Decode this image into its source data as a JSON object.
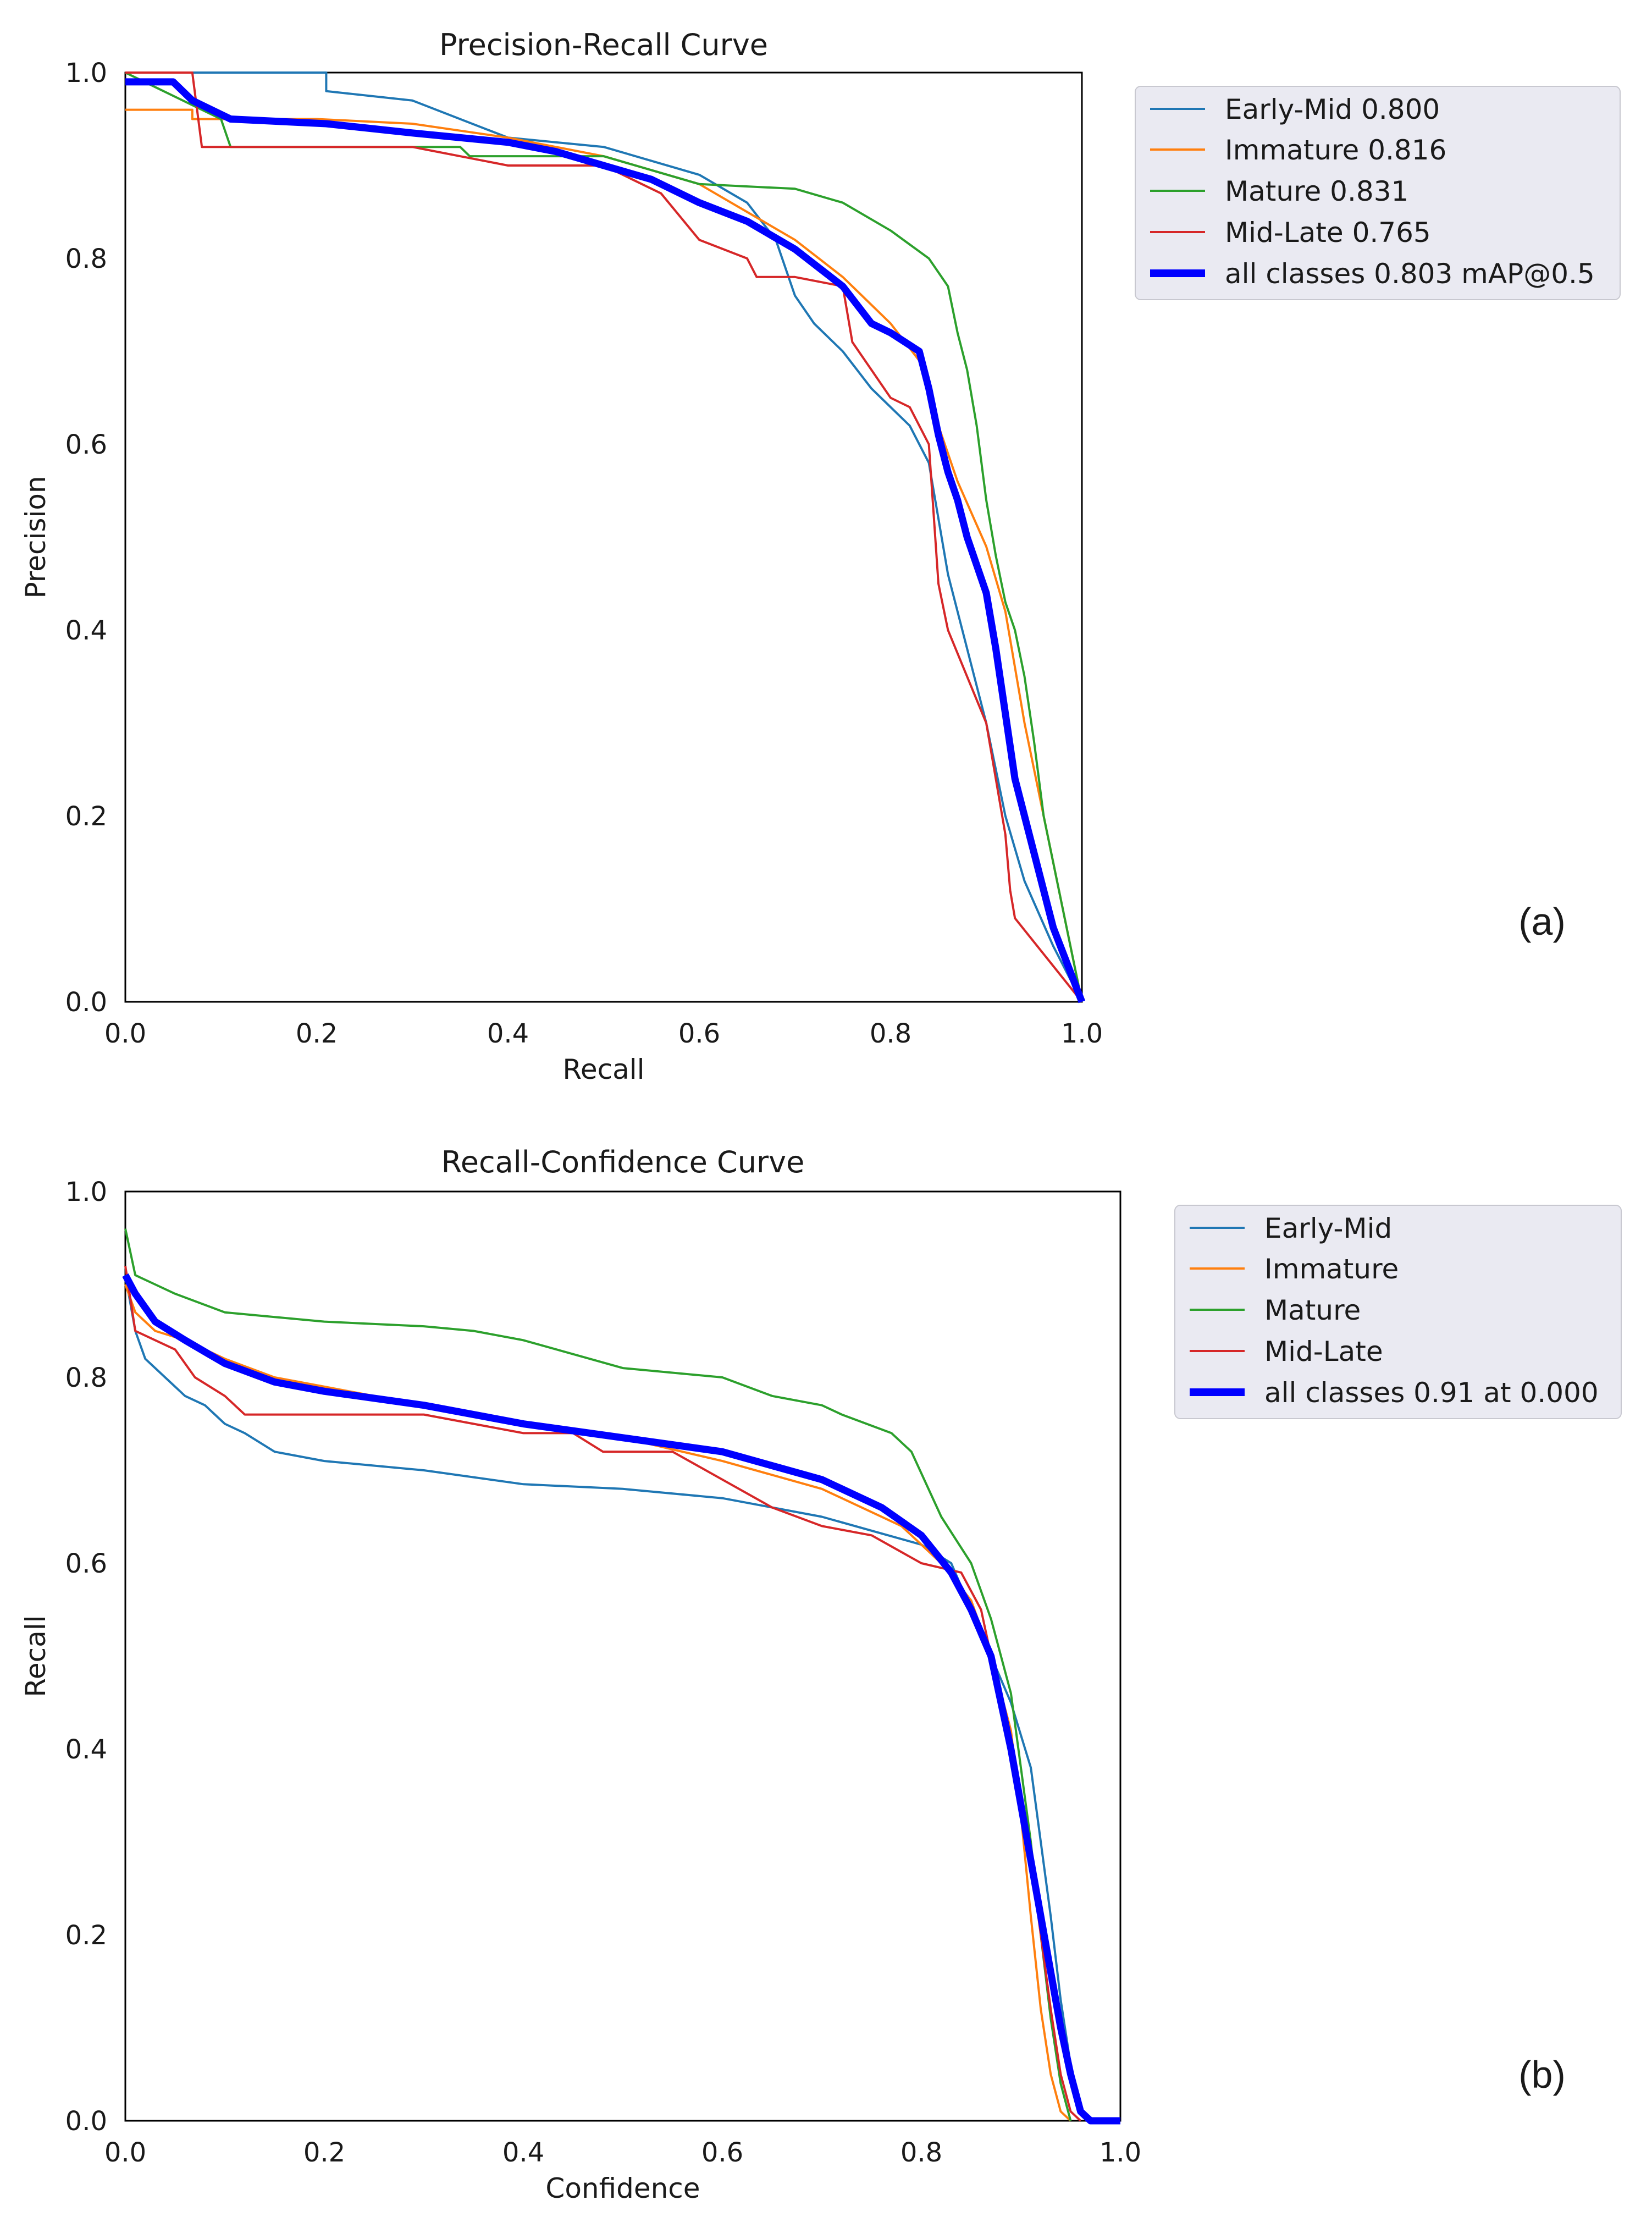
{
  "chart_data": [
    {
      "type": "line",
      "panel_label": "(a)",
      "title": "Precision-Recall Curve",
      "xlabel": "Recall",
      "ylabel": "Precision",
      "xlim": [
        0,
        1
      ],
      "ylim": [
        0,
        1
      ],
      "xticks": [
        "0.0",
        "0.2",
        "0.4",
        "0.6",
        "0.8",
        "1.0"
      ],
      "yticks": [
        "0.0",
        "0.2",
        "0.4",
        "0.6",
        "0.8",
        "1.0"
      ],
      "grid": false,
      "legend_position": "outside-right-top",
      "series": [
        {
          "name": "Early-Mid",
          "legend_label": "Early-Mid 0.800",
          "color": "#1f77b4",
          "bold": false,
          "x": [
            0.0,
            0.21,
            0.21,
            0.3,
            0.4,
            0.5,
            0.6,
            0.65,
            0.68,
            0.7,
            0.72,
            0.75,
            0.78,
            0.8,
            0.82,
            0.84,
            0.86,
            0.88,
            0.9,
            0.92,
            0.94,
            0.97,
            1.0
          ],
          "y": [
            1.0,
            1.0,
            0.98,
            0.97,
            0.93,
            0.92,
            0.89,
            0.86,
            0.82,
            0.76,
            0.73,
            0.7,
            0.66,
            0.64,
            0.62,
            0.58,
            0.46,
            0.38,
            0.3,
            0.2,
            0.13,
            0.06,
            0.0
          ]
        },
        {
          "name": "Immature",
          "legend_label": "Immature 0.816",
          "color": "#ff7f0e",
          "bold": false,
          "x": [
            0.0,
            0.07,
            0.07,
            0.2,
            0.3,
            0.4,
            0.5,
            0.6,
            0.65,
            0.7,
            0.75,
            0.8,
            0.83,
            0.85,
            0.87,
            0.9,
            0.92,
            0.94,
            0.96,
            0.98,
            1.0
          ],
          "y": [
            0.96,
            0.96,
            0.95,
            0.95,
            0.945,
            0.93,
            0.91,
            0.88,
            0.85,
            0.82,
            0.78,
            0.73,
            0.69,
            0.62,
            0.56,
            0.49,
            0.42,
            0.3,
            0.2,
            0.1,
            0.0
          ]
        },
        {
          "name": "Mature",
          "legend_label": "Mature 0.831",
          "color": "#2ca02c",
          "bold": false,
          "x": [
            0.0,
            0.1,
            0.11,
            0.35,
            0.36,
            0.5,
            0.6,
            0.7,
            0.75,
            0.8,
            0.84,
            0.86,
            0.87,
            0.88,
            0.89,
            0.9,
            0.91,
            0.92,
            0.93,
            0.94,
            0.95,
            0.96,
            1.0
          ],
          "y": [
            1.0,
            0.95,
            0.92,
            0.92,
            0.91,
            0.91,
            0.88,
            0.875,
            0.86,
            0.83,
            0.8,
            0.77,
            0.72,
            0.68,
            0.62,
            0.54,
            0.48,
            0.43,
            0.4,
            0.35,
            0.28,
            0.2,
            0.0
          ]
        },
        {
          "name": "Mid-Late",
          "legend_label": "Mid-Late 0.765",
          "color": "#d62728",
          "bold": false,
          "x": [
            0.0,
            0.07,
            0.08,
            0.3,
            0.4,
            0.5,
            0.56,
            0.6,
            0.65,
            0.66,
            0.7,
            0.75,
            0.76,
            0.78,
            0.8,
            0.82,
            0.84,
            0.85,
            0.86,
            0.88,
            0.9,
            0.92,
            0.925,
            0.93,
            1.0
          ],
          "y": [
            1.0,
            1.0,
            0.92,
            0.92,
            0.9,
            0.9,
            0.87,
            0.82,
            0.8,
            0.78,
            0.78,
            0.77,
            0.71,
            0.68,
            0.65,
            0.64,
            0.6,
            0.45,
            0.4,
            0.35,
            0.3,
            0.18,
            0.12,
            0.09,
            0.0
          ]
        },
        {
          "name": "all classes",
          "legend_label": "all classes 0.803 mAP@0.5",
          "color": "#0000ff",
          "bold": true,
          "x": [
            0.0,
            0.05,
            0.07,
            0.11,
            0.21,
            0.3,
            0.4,
            0.45,
            0.5,
            0.55,
            0.6,
            0.65,
            0.7,
            0.75,
            0.78,
            0.8,
            0.83,
            0.84,
            0.85,
            0.86,
            0.87,
            0.88,
            0.89,
            0.9,
            0.91,
            0.92,
            0.93,
            0.94,
            0.95,
            0.97,
            1.0
          ],
          "y": [
            0.99,
            0.99,
            0.97,
            0.95,
            0.945,
            0.935,
            0.925,
            0.915,
            0.9,
            0.885,
            0.86,
            0.84,
            0.81,
            0.77,
            0.73,
            0.72,
            0.7,
            0.66,
            0.61,
            0.57,
            0.54,
            0.5,
            0.47,
            0.44,
            0.38,
            0.31,
            0.24,
            0.2,
            0.16,
            0.08,
            0.0
          ]
        }
      ]
    },
    {
      "type": "line",
      "panel_label": "(b)",
      "title": "Recall-Confidence Curve",
      "xlabel": "Confidence",
      "ylabel": "Recall",
      "xlim": [
        0,
        1
      ],
      "ylim": [
        0,
        1
      ],
      "xticks": [
        "0.0",
        "0.2",
        "0.4",
        "0.6",
        "0.8",
        "1.0"
      ],
      "yticks": [
        "0.0",
        "0.2",
        "0.4",
        "0.6",
        "0.8",
        "1.0"
      ],
      "grid": false,
      "legend_position": "outside-right-top",
      "series": [
        {
          "name": "Early-Mid",
          "legend_label": "Early-Mid",
          "color": "#1f77b4",
          "bold": false,
          "x": [
            0.0,
            0.01,
            0.02,
            0.04,
            0.06,
            0.08,
            0.1,
            0.12,
            0.15,
            0.2,
            0.3,
            0.4,
            0.5,
            0.6,
            0.7,
            0.8,
            0.83,
            0.85,
            0.87,
            0.89,
            0.91,
            0.92,
            0.93,
            0.94,
            0.95,
            0.96,
            0.97
          ],
          "y": [
            0.91,
            0.85,
            0.82,
            0.8,
            0.78,
            0.77,
            0.75,
            0.74,
            0.72,
            0.71,
            0.7,
            0.685,
            0.68,
            0.67,
            0.65,
            0.62,
            0.6,
            0.55,
            0.5,
            0.45,
            0.38,
            0.3,
            0.22,
            0.13,
            0.06,
            0.01,
            0.0
          ]
        },
        {
          "name": "Immature",
          "legend_label": "Immature",
          "color": "#ff7f0e",
          "bold": false,
          "x": [
            0.0,
            0.01,
            0.03,
            0.06,
            0.1,
            0.15,
            0.2,
            0.3,
            0.4,
            0.5,
            0.6,
            0.7,
            0.78,
            0.82,
            0.85,
            0.87,
            0.89,
            0.9,
            0.91,
            0.92,
            0.93,
            0.94,
            0.95
          ],
          "y": [
            0.9,
            0.87,
            0.85,
            0.84,
            0.82,
            0.8,
            0.79,
            0.77,
            0.75,
            0.735,
            0.71,
            0.68,
            0.64,
            0.6,
            0.56,
            0.5,
            0.42,
            0.33,
            0.22,
            0.12,
            0.05,
            0.01,
            0.0
          ]
        },
        {
          "name": "Mature",
          "legend_label": "Mature",
          "color": "#2ca02c",
          "bold": false,
          "x": [
            0.0,
            0.01,
            0.03,
            0.05,
            0.1,
            0.15,
            0.2,
            0.3,
            0.35,
            0.4,
            0.5,
            0.6,
            0.65,
            0.7,
            0.72,
            0.77,
            0.79,
            0.82,
            0.85,
            0.87,
            0.89,
            0.9,
            0.91,
            0.92,
            0.93,
            0.94,
            0.95
          ],
          "y": [
            0.96,
            0.91,
            0.9,
            0.89,
            0.87,
            0.865,
            0.86,
            0.855,
            0.85,
            0.84,
            0.81,
            0.8,
            0.78,
            0.77,
            0.76,
            0.74,
            0.72,
            0.65,
            0.6,
            0.54,
            0.46,
            0.38,
            0.3,
            0.2,
            0.11,
            0.04,
            0.0
          ]
        },
        {
          "name": "Mid-Late",
          "legend_label": "Mid-Late",
          "color": "#d62728",
          "bold": false,
          "x": [
            0.0,
            0.01,
            0.03,
            0.05,
            0.07,
            0.1,
            0.12,
            0.15,
            0.2,
            0.3,
            0.35,
            0.4,
            0.45,
            0.48,
            0.55,
            0.65,
            0.7,
            0.75,
            0.8,
            0.84,
            0.86,
            0.87,
            0.88,
            0.89,
            0.9,
            0.91,
            0.92,
            0.93,
            0.94,
            0.95,
            0.96
          ],
          "y": [
            0.92,
            0.85,
            0.84,
            0.83,
            0.8,
            0.78,
            0.76,
            0.76,
            0.76,
            0.76,
            0.75,
            0.74,
            0.74,
            0.72,
            0.72,
            0.66,
            0.64,
            0.63,
            0.6,
            0.59,
            0.55,
            0.5,
            0.46,
            0.41,
            0.35,
            0.28,
            0.2,
            0.12,
            0.05,
            0.01,
            0.0
          ]
        },
        {
          "name": "all classes",
          "legend_label": "all classes 0.91 at 0.000",
          "color": "#0000ff",
          "bold": true,
          "x": [
            0.0,
            0.01,
            0.03,
            0.06,
            0.1,
            0.15,
            0.2,
            0.3,
            0.4,
            0.5,
            0.6,
            0.7,
            0.76,
            0.8,
            0.83,
            0.85,
            0.87,
            0.88,
            0.89,
            0.9,
            0.91,
            0.92,
            0.93,
            0.94,
            0.95,
            0.96,
            0.97,
            1.0
          ],
          "y": [
            0.91,
            0.89,
            0.86,
            0.84,
            0.815,
            0.795,
            0.785,
            0.77,
            0.75,
            0.735,
            0.72,
            0.69,
            0.66,
            0.63,
            0.59,
            0.55,
            0.5,
            0.45,
            0.4,
            0.34,
            0.28,
            0.22,
            0.16,
            0.1,
            0.05,
            0.01,
            0.0,
            0.0
          ]
        }
      ]
    }
  ]
}
